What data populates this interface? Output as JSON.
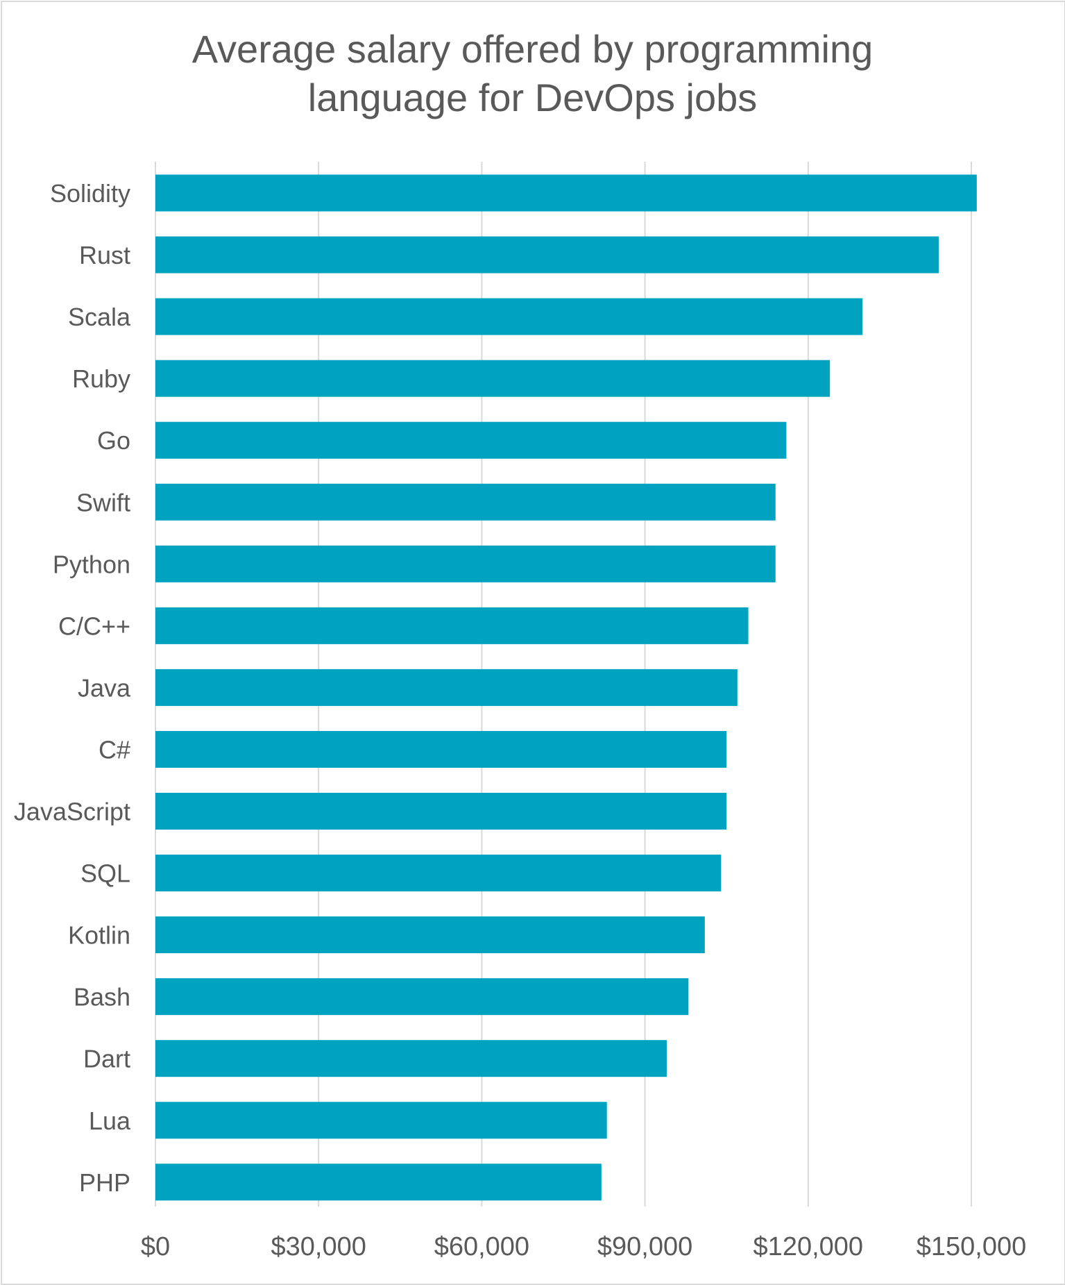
{
  "chart_data": {
    "type": "bar",
    "orientation": "horizontal",
    "title": "Average salary offered by programming language for DevOps jobs",
    "title_lines": [
      "Average salary offered by programming",
      "language for DevOps jobs"
    ],
    "categories": [
      "Solidity",
      "Rust",
      "Scala",
      "Ruby",
      "Go",
      "Swift",
      "Python",
      "C/C++",
      "Java",
      "C#",
      "JavaScript",
      "SQL",
      "Kotlin",
      "Bash",
      "Dart",
      "Lua",
      "PHP"
    ],
    "values": [
      151000,
      144000,
      130000,
      124000,
      116000,
      114000,
      114000,
      109000,
      107000,
      105000,
      105000,
      104000,
      101000,
      98000,
      94000,
      83000,
      82000
    ],
    "xlim": [
      0,
      150000
    ],
    "xticks": [
      0,
      30000,
      60000,
      90000,
      120000,
      150000
    ],
    "xtick_labels": [
      "$0",
      "$30,000",
      "$60,000",
      "$90,000",
      "$120,000",
      "$150,000"
    ],
    "xlabel": "",
    "ylabel": "",
    "grid": "vertical",
    "legend": "none",
    "bar_color": "#00a3bf",
    "grid_color": "#d9d9d9",
    "text_color": "#595959"
  }
}
